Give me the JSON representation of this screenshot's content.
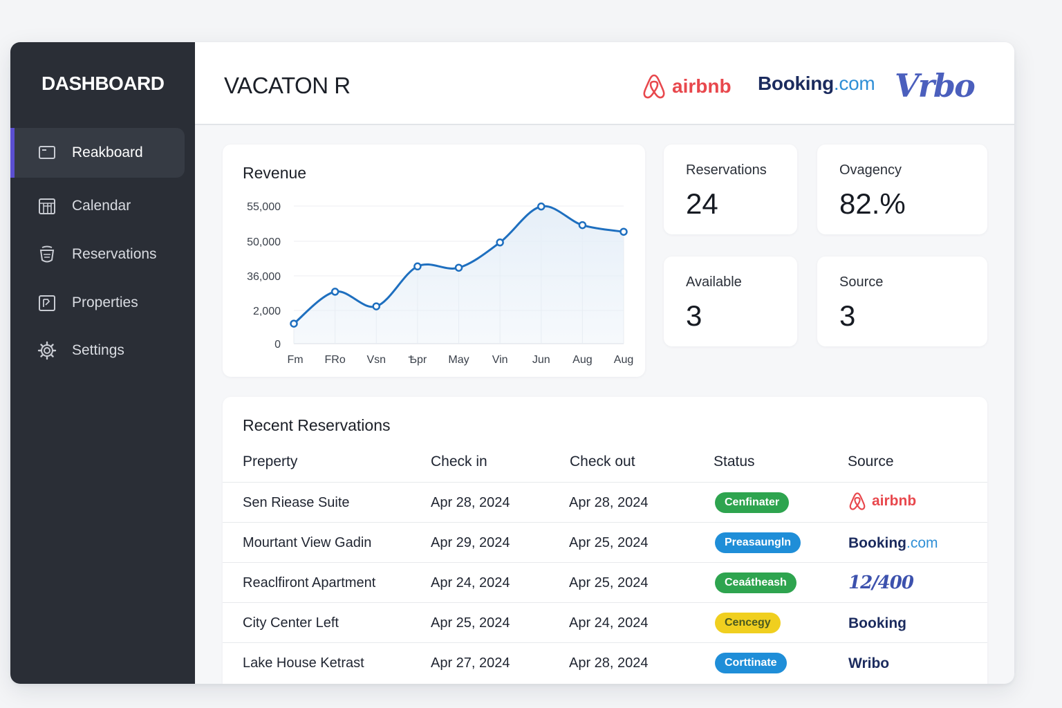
{
  "sidebar": {
    "brand": "DASHBOARD",
    "items": [
      {
        "label": "Reakboard",
        "icon": "dashboard-icon",
        "active": true
      },
      {
        "label": "Calendar",
        "icon": "calendar-icon",
        "active": false
      },
      {
        "label": "Reservations",
        "icon": "reservations-icon",
        "active": false
      },
      {
        "label": "Properties",
        "icon": "properties-icon",
        "active": false
      },
      {
        "label": "Settings",
        "icon": "gear-icon",
        "active": false
      }
    ]
  },
  "header": {
    "title": "VACATON R",
    "logos": {
      "airbnb": "airbnb",
      "booking_main": "Booking",
      "booking_suffix": ".com",
      "vrbo": "Vrbo"
    }
  },
  "stats": [
    {
      "label": "Reservations",
      "value": "24"
    },
    {
      "label": "Ovagency",
      "value": "82.%"
    },
    {
      "label": "Available",
      "value": "3"
    },
    {
      "label": "Source",
      "value": "3"
    }
  ],
  "chart_data": {
    "type": "area",
    "title": "Revenue",
    "categories": [
      "Fm",
      "FRo",
      "Vsn",
      "Ѣpr",
      "May",
      "Vin",
      "Jun",
      "Aug",
      "Aug"
    ],
    "y_tick_labels": [
      "0",
      "2,000",
      "36,000",
      "50,000",
      "55,000"
    ],
    "values": [
      1500,
      3900,
      2800,
      5800,
      5700,
      7600,
      10300,
      8900,
      8400
    ],
    "colors": {
      "line": "#1e6fbf",
      "fill": "#e6eff8"
    }
  },
  "table": {
    "title": "Recent Reservations",
    "columns": [
      "Preperty",
      "Check in",
      "Check out",
      "Status",
      "Source"
    ],
    "rows": [
      {
        "property": "Sen Riease Suite",
        "check_in": "Apr 28, 2024",
        "check_out": "Apr 28, 2024",
        "status": "Cenfinater",
        "status_color": "#2ea44f",
        "source": "airbnb",
        "source_type": "airbnb"
      },
      {
        "property": "Mourtant View Gadin",
        "check_in": "Apr 29, 2024",
        "check_out": "Apr 25, 2024",
        "status": "Preasaungln",
        "status_color": "#1f8ed8",
        "source": "Booking",
        "source_suffix": ".com",
        "source_type": "booking"
      },
      {
        "property": "Reaclfiront Apartment",
        "check_in": "Apr 24, 2024",
        "check_out": "Apr 25, 2024",
        "status": "Ceaátheash",
        "status_color": "#2ea44f",
        "source": "12/400",
        "source_type": "vrbo"
      },
      {
        "property": "City Center Left",
        "check_in": "Apr 25, 2024",
        "check_out": "Apr 24, 2024",
        "status": "Cencegy",
        "status_color": "#f0cf1f",
        "status_text_color": "#4a5a20",
        "source": "Booking",
        "source_type": "plain"
      },
      {
        "property": "Lake House Ketrast",
        "check_in": "Apr 27, 2024",
        "check_out": "Apr 28, 2024",
        "status": "Corttinate",
        "status_color": "#1f8ed8",
        "source": "Wribo",
        "source_type": "plain"
      }
    ]
  }
}
